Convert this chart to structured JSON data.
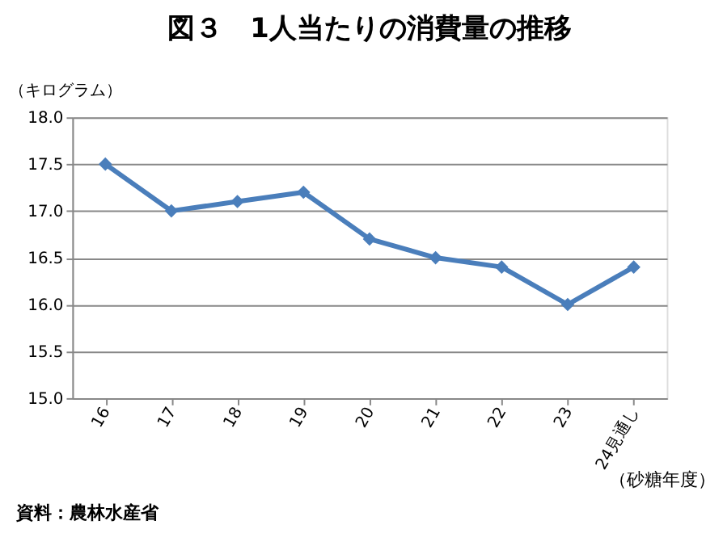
{
  "chart_data": {
    "type": "line",
    "title": "図３　1人当たりの消費量の推移",
    "ylabel": "（キログラム）",
    "xlabel": "（砂糖年度）",
    "categories": [
      "16",
      "17",
      "18",
      "19",
      "20",
      "21",
      "22",
      "23",
      "24見通し"
    ],
    "series": [
      {
        "color": "#4a7ebb",
        "values": [
          17.5,
          17.0,
          17.1,
          17.2,
          16.7,
          16.5,
          16.4,
          16.0,
          16.4
        ]
      }
    ],
    "ylim": [
      15.0,
      18.0
    ],
    "yticks": [
      {
        "value": 15.0,
        "label": "15.0"
      },
      {
        "value": 15.5,
        "label": "15.5"
      },
      {
        "value": 16.0,
        "label": "16.0"
      },
      {
        "value": 16.5,
        "label": "16.5"
      },
      {
        "value": 17.0,
        "label": "17.0"
      },
      {
        "value": 17.5,
        "label": "17.5"
      },
      {
        "value": 18.0,
        "label": "18.0"
      }
    ],
    "grid": "y",
    "marker": "diamond",
    "line_style": "solid",
    "annotations": [
      "資料：農林水産省"
    ]
  }
}
